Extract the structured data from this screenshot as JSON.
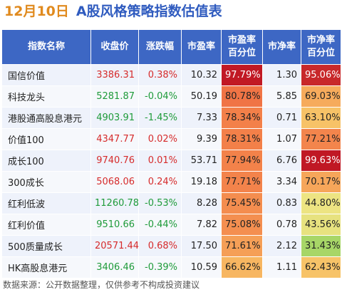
{
  "header": {
    "date": "12月10日",
    "title": "A股风格策略指数估值表"
  },
  "table": {
    "columns": [
      {
        "l1": "指数名称",
        "l2": ""
      },
      {
        "l1": "收盘价",
        "l2": ""
      },
      {
        "l1": "涨跌幅",
        "l2": ""
      },
      {
        "l1": "市盈率",
        "l2": ""
      },
      {
        "l1": "市盈率",
        "l2": "百分位"
      },
      {
        "l1": "市净率",
        "l2": ""
      },
      {
        "l1": "市净率",
        "l2": "百分位"
      }
    ],
    "rows": [
      {
        "name": "国信价值",
        "close": "3386.31",
        "change": "0.38%",
        "pe": "10.32",
        "pe_pct": "97.79%",
        "pb": "1.30",
        "pb_pct": "95.06%"
      },
      {
        "name": "科技龙头",
        "close": "5281.87",
        "change": "-0.04%",
        "pe": "50.19",
        "pe_pct": "80.78%",
        "pb": "5.85",
        "pb_pct": "69.03%"
      },
      {
        "name": "港股通高股息港元",
        "close": "4903.91",
        "change": "-1.45%",
        "pe": "7.33",
        "pe_pct": "78.34%",
        "pb": "0.71",
        "pb_pct": "63.10%"
      },
      {
        "name": "价值100",
        "close": "4347.77",
        "change": "0.02%",
        "pe": "9.39",
        "pe_pct": "78.31%",
        "pb": "1.07",
        "pb_pct": "77.21%"
      },
      {
        "name": "成长100",
        "close": "9740.76",
        "change": "0.01%",
        "pe": "53.71",
        "pe_pct": "77.94%",
        "pb": "6.76",
        "pb_pct": "99.63%"
      },
      {
        "name": "300成长",
        "close": "5068.06",
        "change": "0.24%",
        "pe": "19.18",
        "pe_pct": "77.71%",
        "pb": "3.34",
        "pb_pct": "70.17%"
      },
      {
        "name": "红利低波",
        "close": "11260.78",
        "change": "-0.53%",
        "pe": "8.28",
        "pe_pct": "75.45%",
        "pb": "0.83",
        "pb_pct": "44.80%"
      },
      {
        "name": "红利价值",
        "close": "9510.66",
        "change": "-0.44%",
        "pe": "7.82",
        "pe_pct": "75.08%",
        "pb": "0.78",
        "pb_pct": "43.56%"
      },
      {
        "name": "500质量成长",
        "close": "20571.44",
        "change": "0.68%",
        "pe": "17.50",
        "pe_pct": "71.61%",
        "pb": "2.12",
        "pb_pct": "31.43%"
      },
      {
        "name": "HK高股息港元",
        "close": "3406.46",
        "change": "-0.39%",
        "pe": "10.59",
        "pe_pct": "66.62%",
        "pb": "1.11",
        "pb_pct": "62.43%"
      }
    ]
  },
  "footer": {
    "source": "数据来源：公开数据整理，仅供参考不构成投资建议"
  },
  "colors": {
    "header_bg": "#3d67c4",
    "title_blue": "#2f5bbf",
    "date_orange": "#e08a1e",
    "up_red": "#d62b2b",
    "down_green": "#1f9b3a"
  }
}
